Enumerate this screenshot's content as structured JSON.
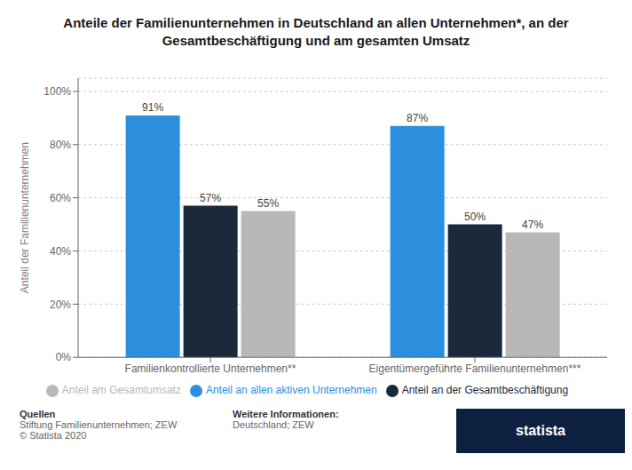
{
  "chart_data": {
    "type": "bar",
    "title": "Anteile der Familienunternehmen in Deutschland an allen Unternehmen*, an der\nGesamtbeschäftigung und am gesamten Umsatz",
    "y_label": "Anteil der Familienunternehmen",
    "categories": [
      "Familienkontrollierte Unternehmen**",
      "Eigentümergeführte Familienunternehmen***"
    ],
    "series": [
      {
        "name": "Anteil an allen aktiven Unternehmen",
        "color": "#2b8fde",
        "values": [
          91,
          87
        ],
        "value_labels": [
          "91%",
          "87%"
        ]
      },
      {
        "name": "Anteil an der Gesamtbeschäftigung",
        "color": "#1b2a3b",
        "values": [
          57,
          50
        ],
        "value_labels": [
          "57%",
          "50%"
        ]
      },
      {
        "name": "Anteil am Gesamtumsatz",
        "color": "#b8b8b8",
        "values": [
          55,
          47
        ],
        "value_labels": [
          "55%",
          "47%"
        ]
      }
    ],
    "ylim": [
      0,
      105
    ],
    "yticks": [
      {
        "value": 0,
        "label": "0%"
      },
      {
        "value": 20,
        "label": "20%"
      },
      {
        "value": 40,
        "label": "40%"
      },
      {
        "value": 60,
        "label": "60%"
      },
      {
        "value": 80,
        "label": "80%"
      },
      {
        "value": 100,
        "label": "100%"
      }
    ],
    "grid": true,
    "legend": "bottom",
    "data_labels": true,
    "annotations": [
      "Quellen",
      "Stiftung Familienunternehmen; ZEW\n© Statista 2020",
      "Weitere Informationen:",
      "Deutschland; ZEW",
      "statista"
    ]
  }
}
